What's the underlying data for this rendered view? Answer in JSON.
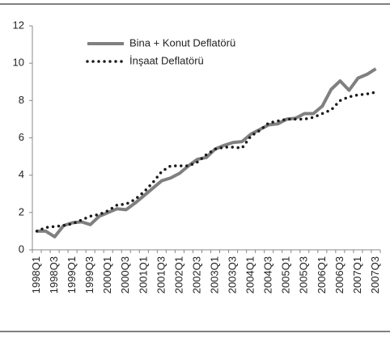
{
  "chart_data": {
    "type": "line",
    "categories": [
      "1998Q1",
      null,
      "1998Q3",
      null,
      "1999Q1",
      null,
      "1999Q3",
      null,
      "2000Q1",
      null,
      "2000Q3",
      null,
      "2001Q1",
      null,
      "2001Q3",
      null,
      "2002Q1",
      null,
      "2002Q3",
      null,
      "2003Q1",
      null,
      "2003Q3",
      null,
      "2004Q1",
      null,
      "2004Q3",
      null,
      "2005Q1",
      null,
      "2005Q3",
      null,
      "2006Q1",
      null,
      "2006Q3",
      null,
      "2007Q1",
      null,
      "2007Q3"
    ],
    "series": [
      {
        "name": "Bina + Konut Deflatörü",
        "color": "#808080",
        "style": "solid",
        "values": [
          1.0,
          1.0,
          0.7,
          1.3,
          1.45,
          1.5,
          1.35,
          1.8,
          2.0,
          2.2,
          2.15,
          2.5,
          2.9,
          3.3,
          3.7,
          3.85,
          4.1,
          4.5,
          4.85,
          4.95,
          5.4,
          5.6,
          5.75,
          5.8,
          6.2,
          6.45,
          6.7,
          6.75,
          7.0,
          7.05,
          7.3,
          7.3,
          7.7,
          8.6,
          9.05,
          8.55,
          9.2,
          9.4,
          9.7
        ]
      },
      {
        "name": "İnşaat Deflatörü",
        "color": "#1a1a1a",
        "style": "dotted",
        "values": [
          1.0,
          1.2,
          1.25,
          1.3,
          1.4,
          1.6,
          1.8,
          1.9,
          2.1,
          2.4,
          2.45,
          2.7,
          3.1,
          3.6,
          4.2,
          4.5,
          4.5,
          4.5,
          4.7,
          5.1,
          5.4,
          5.5,
          5.5,
          5.45,
          6.1,
          6.4,
          6.8,
          6.9,
          7.0,
          7.0,
          7.0,
          7.1,
          7.3,
          7.5,
          8.0,
          8.2,
          8.3,
          8.35,
          8.45
        ]
      }
    ],
    "ylim": [
      0,
      12
    ],
    "yticks": [
      0,
      2,
      4,
      6,
      8,
      10,
      12
    ],
    "legend": "upper-left"
  }
}
